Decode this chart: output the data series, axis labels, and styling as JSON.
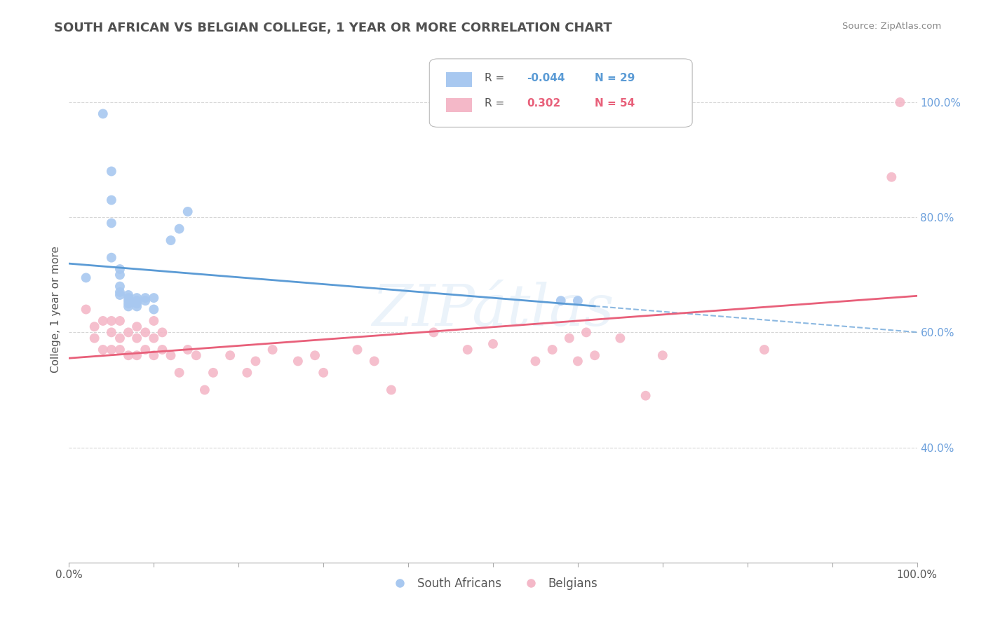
{
  "title": "SOUTH AFRICAN VS BELGIAN COLLEGE, 1 YEAR OR MORE CORRELATION CHART",
  "source_text": "Source: ZipAtlas.com",
  "ylabel": "College, 1 year or more",
  "xlim": [
    0.0,
    1.0
  ],
  "ylim": [
    0.2,
    1.08
  ],
  "ytick_labels_right": [
    "100.0%",
    "80.0%",
    "60.0%",
    "40.0%"
  ],
  "ytick_positions_right": [
    1.0,
    0.8,
    0.6,
    0.4
  ],
  "watermark": "ZIPátlas",
  "legend_blue_label": "South Africans",
  "legend_pink_label": "Belgians",
  "r_blue": -0.044,
  "n_blue": 29,
  "r_pink": 0.302,
  "n_pink": 54,
  "blue_color": "#A8C8F0",
  "pink_color": "#F4B8C8",
  "blue_line_color": "#5B9BD5",
  "pink_line_color": "#E8607A",
  "background_color": "#FFFFFF",
  "grid_color": "#CCCCCC",
  "title_color": "#505050",
  "source_color": "#888888",
  "axis_label_color": "#555555",
  "right_tick_color": "#6CA0DC",
  "south_african_x": [
    0.02,
    0.04,
    0.05,
    0.05,
    0.05,
    0.05,
    0.06,
    0.06,
    0.06,
    0.06,
    0.06,
    0.07,
    0.07,
    0.07,
    0.07,
    0.07,
    0.08,
    0.08,
    0.08,
    0.08,
    0.09,
    0.09,
    0.1,
    0.1,
    0.12,
    0.13,
    0.14,
    0.58,
    0.6
  ],
  "south_african_y": [
    0.695,
    0.98,
    0.88,
    0.83,
    0.79,
    0.73,
    0.71,
    0.7,
    0.68,
    0.67,
    0.665,
    0.665,
    0.66,
    0.655,
    0.65,
    0.645,
    0.66,
    0.655,
    0.65,
    0.645,
    0.66,
    0.655,
    0.66,
    0.64,
    0.76,
    0.78,
    0.81,
    0.655,
    0.655
  ],
  "belgian_x": [
    0.02,
    0.03,
    0.03,
    0.04,
    0.04,
    0.05,
    0.05,
    0.05,
    0.06,
    0.06,
    0.06,
    0.07,
    0.07,
    0.08,
    0.08,
    0.08,
    0.09,
    0.09,
    0.1,
    0.1,
    0.1,
    0.11,
    0.11,
    0.12,
    0.13,
    0.14,
    0.15,
    0.16,
    0.17,
    0.19,
    0.21,
    0.22,
    0.24,
    0.27,
    0.29,
    0.3,
    0.34,
    0.36,
    0.38,
    0.43,
    0.47,
    0.5,
    0.55,
    0.57,
    0.59,
    0.6,
    0.61,
    0.62,
    0.65,
    0.68,
    0.7,
    0.82,
    0.97,
    0.98
  ],
  "belgian_y": [
    0.64,
    0.61,
    0.59,
    0.62,
    0.57,
    0.62,
    0.6,
    0.57,
    0.62,
    0.59,
    0.57,
    0.6,
    0.56,
    0.61,
    0.59,
    0.56,
    0.6,
    0.57,
    0.62,
    0.59,
    0.56,
    0.6,
    0.57,
    0.56,
    0.53,
    0.57,
    0.56,
    0.5,
    0.53,
    0.56,
    0.53,
    0.55,
    0.57,
    0.55,
    0.56,
    0.53,
    0.57,
    0.55,
    0.5,
    0.6,
    0.57,
    0.58,
    0.55,
    0.57,
    0.59,
    0.55,
    0.6,
    0.56,
    0.59,
    0.49,
    0.56,
    0.57,
    0.87,
    1.0
  ],
  "blue_line_solid_end": 0.62,
  "blue_line_dashed_start": 0.62,
  "xtick_positions": [
    0.0,
    0.1,
    0.2,
    0.3,
    0.4,
    0.5,
    0.6,
    0.7,
    0.8,
    0.9,
    1.0
  ],
  "xtick_labels": [
    "0.0%",
    "",
    "",
    "",
    "",
    "",
    "",
    "",
    "",
    "",
    "100.0%"
  ]
}
